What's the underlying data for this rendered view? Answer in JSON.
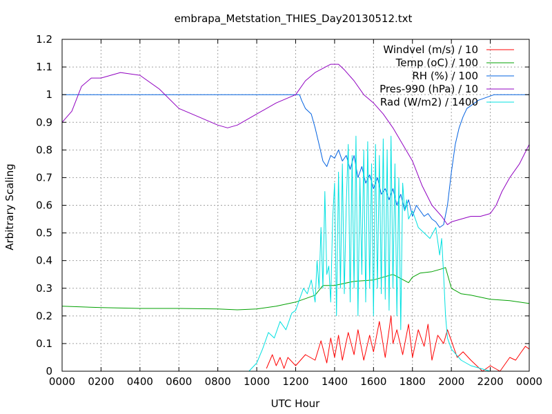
{
  "chart_data": {
    "type": "line",
    "title": "embrapa_Metstation_THIES_Day20130512.txt",
    "xlabel": "UTC Hour",
    "ylabel": "Arbitrary Scaling",
    "xlim": [
      0,
      2400
    ],
    "ylim": [
      0,
      1.2
    ],
    "grid": true,
    "legend_position": "top-right",
    "x_tick_labels": [
      "0000",
      "0200",
      "0400",
      "0600",
      "0800",
      "1000",
      "1200",
      "1400",
      "1600",
      "1800",
      "2000",
      "2200",
      "0000"
    ],
    "y_tick_labels": [
      "0",
      "0.1",
      "0.2",
      "0.3",
      "0.4",
      "0.5",
      "0.6",
      "0.7",
      "0.8",
      "0.9",
      "1",
      "1.1",
      "1.2"
    ],
    "series": [
      {
        "name": "Windvel (m/s) / 10",
        "color": "#ff0000",
        "x": [
          1050,
          1080,
          1100,
          1120,
          1140,
          1160,
          1200,
          1250,
          1300,
          1330,
          1360,
          1380,
          1400,
          1420,
          1440,
          1470,
          1500,
          1520,
          1550,
          1580,
          1600,
          1630,
          1660,
          1690,
          1700,
          1720,
          1750,
          1780,
          1800,
          1830,
          1860,
          1880,
          1900,
          1930,
          1960,
          1980,
          2000,
          2030,
          2060,
          2100,
          2130,
          2160,
          2200,
          2250,
          2300,
          2330,
          2360,
          2380,
          2400
        ],
        "y": [
          0.01,
          0.06,
          0.02,
          0.05,
          0.01,
          0.05,
          0.02,
          0.06,
          0.04,
          0.11,
          0.03,
          0.12,
          0.05,
          0.13,
          0.04,
          0.14,
          0.06,
          0.15,
          0.04,
          0.13,
          0.07,
          0.18,
          0.05,
          0.2,
          0.1,
          0.15,
          0.06,
          0.17,
          0.05,
          0.15,
          0.09,
          0.17,
          0.04,
          0.13,
          0.1,
          0.15,
          0.11,
          0.05,
          0.07,
          0.04,
          0.02,
          0.0,
          0.02,
          0.0,
          0.05,
          0.04,
          0.07,
          0.09,
          0.08
        ]
      },
      {
        "name": "Temp (oC) / 100",
        "color": "#00a000",
        "x": [
          0,
          200,
          400,
          600,
          800,
          900,
          1000,
          1100,
          1200,
          1300,
          1340,
          1400,
          1500,
          1600,
          1700,
          1780,
          1800,
          1840,
          1900,
          1950,
          1970,
          2000,
          2050,
          2100,
          2200,
          2300,
          2400
        ],
        "y": [
          0.235,
          0.23,
          0.227,
          0.227,
          0.225,
          0.222,
          0.225,
          0.235,
          0.25,
          0.275,
          0.31,
          0.31,
          0.325,
          0.33,
          0.35,
          0.32,
          0.34,
          0.355,
          0.36,
          0.37,
          0.375,
          0.3,
          0.28,
          0.275,
          0.26,
          0.255,
          0.245
        ]
      },
      {
        "name": "RH (%) / 100",
        "color": "#0060e0",
        "x": [
          0,
          1220,
          1230,
          1250,
          1280,
          1300,
          1320,
          1340,
          1360,
          1380,
          1400,
          1420,
          1440,
          1460,
          1480,
          1500,
          1520,
          1540,
          1560,
          1580,
          1600,
          1620,
          1640,
          1660,
          1680,
          1700,
          1720,
          1740,
          1760,
          1780,
          1800,
          1820,
          1840,
          1860,
          1880,
          1900,
          1920,
          1940,
          1960,
          1980,
          2000,
          2020,
          2040,
          2060,
          2080,
          2100,
          2140,
          2180,
          2220,
          2400
        ],
        "y": [
          1.0,
          1.0,
          0.98,
          0.95,
          0.93,
          0.88,
          0.82,
          0.76,
          0.74,
          0.78,
          0.77,
          0.8,
          0.76,
          0.78,
          0.73,
          0.78,
          0.7,
          0.74,
          0.68,
          0.71,
          0.66,
          0.7,
          0.64,
          0.66,
          0.62,
          0.66,
          0.6,
          0.64,
          0.58,
          0.62,
          0.56,
          0.6,
          0.58,
          0.56,
          0.57,
          0.55,
          0.54,
          0.52,
          0.53,
          0.6,
          0.72,
          0.82,
          0.88,
          0.92,
          0.95,
          0.96,
          0.98,
          0.99,
          1.0,
          1.0
        ]
      },
      {
        "name": "Pres-990 (hPa) / 10",
        "color": "#9000c0",
        "x": [
          0,
          50,
          100,
          150,
          200,
          300,
          400,
          500,
          600,
          700,
          800,
          850,
          900,
          1000,
          1100,
          1200,
          1250,
          1300,
          1380,
          1420,
          1450,
          1500,
          1550,
          1600,
          1650,
          1700,
          1750,
          1800,
          1850,
          1900,
          1950,
          1980,
          2000,
          2050,
          2100,
          2150,
          2200,
          2230,
          2260,
          2300,
          2350,
          2400
        ],
        "y": [
          0.9,
          0.94,
          1.03,
          1.06,
          1.06,
          1.08,
          1.07,
          1.02,
          0.95,
          0.92,
          0.89,
          0.88,
          0.89,
          0.93,
          0.97,
          1.0,
          1.05,
          1.08,
          1.11,
          1.11,
          1.09,
          1.05,
          1.0,
          0.97,
          0.93,
          0.88,
          0.82,
          0.76,
          0.67,
          0.6,
          0.56,
          0.53,
          0.54,
          0.55,
          0.56,
          0.56,
          0.57,
          0.6,
          0.65,
          0.7,
          0.75,
          0.82
        ]
      },
      {
        "name": "Rad (W/m2) / 1400",
        "color": "#00e0e0",
        "x": [
          0,
          960,
          1000,
          1030,
          1060,
          1090,
          1120,
          1150,
          1180,
          1200,
          1220,
          1240,
          1260,
          1280,
          1300,
          1310,
          1320,
          1330,
          1340,
          1350,
          1360,
          1370,
          1380,
          1390,
          1400,
          1410,
          1420,
          1430,
          1440,
          1450,
          1460,
          1470,
          1480,
          1490,
          1500,
          1510,
          1520,
          1530,
          1540,
          1550,
          1560,
          1570,
          1580,
          1590,
          1600,
          1610,
          1620,
          1630,
          1640,
          1650,
          1660,
          1670,
          1680,
          1690,
          1700,
          1710,
          1720,
          1730,
          1740,
          1750,
          1760,
          1770,
          1780,
          1800,
          1830,
          1860,
          1890,
          1920,
          1940,
          1950,
          1960,
          1970,
          1980,
          2000,
          2050,
          2100,
          2150,
          2200,
          2400
        ],
        "y": [
          0.0,
          0.0,
          0.03,
          0.08,
          0.14,
          0.12,
          0.18,
          0.15,
          0.21,
          0.22,
          0.26,
          0.3,
          0.28,
          0.33,
          0.25,
          0.4,
          0.3,
          0.52,
          0.3,
          0.65,
          0.35,
          0.38,
          0.25,
          0.55,
          0.68,
          0.2,
          0.72,
          0.3,
          0.75,
          0.28,
          0.6,
          0.82,
          0.25,
          0.78,
          0.3,
          0.85,
          0.2,
          0.7,
          0.35,
          0.8,
          0.25,
          0.83,
          0.3,
          0.75,
          0.2,
          0.82,
          0.3,
          0.78,
          0.28,
          0.84,
          0.26,
          0.8,
          0.22,
          0.85,
          0.3,
          0.75,
          0.2,
          0.7,
          0.15,
          0.68,
          0.58,
          0.62,
          0.55,
          0.58,
          0.52,
          0.5,
          0.48,
          0.52,
          0.42,
          0.48,
          0.35,
          0.2,
          0.12,
          0.08,
          0.04,
          0.02,
          0.01,
          0.0,
          0.0
        ]
      }
    ]
  }
}
